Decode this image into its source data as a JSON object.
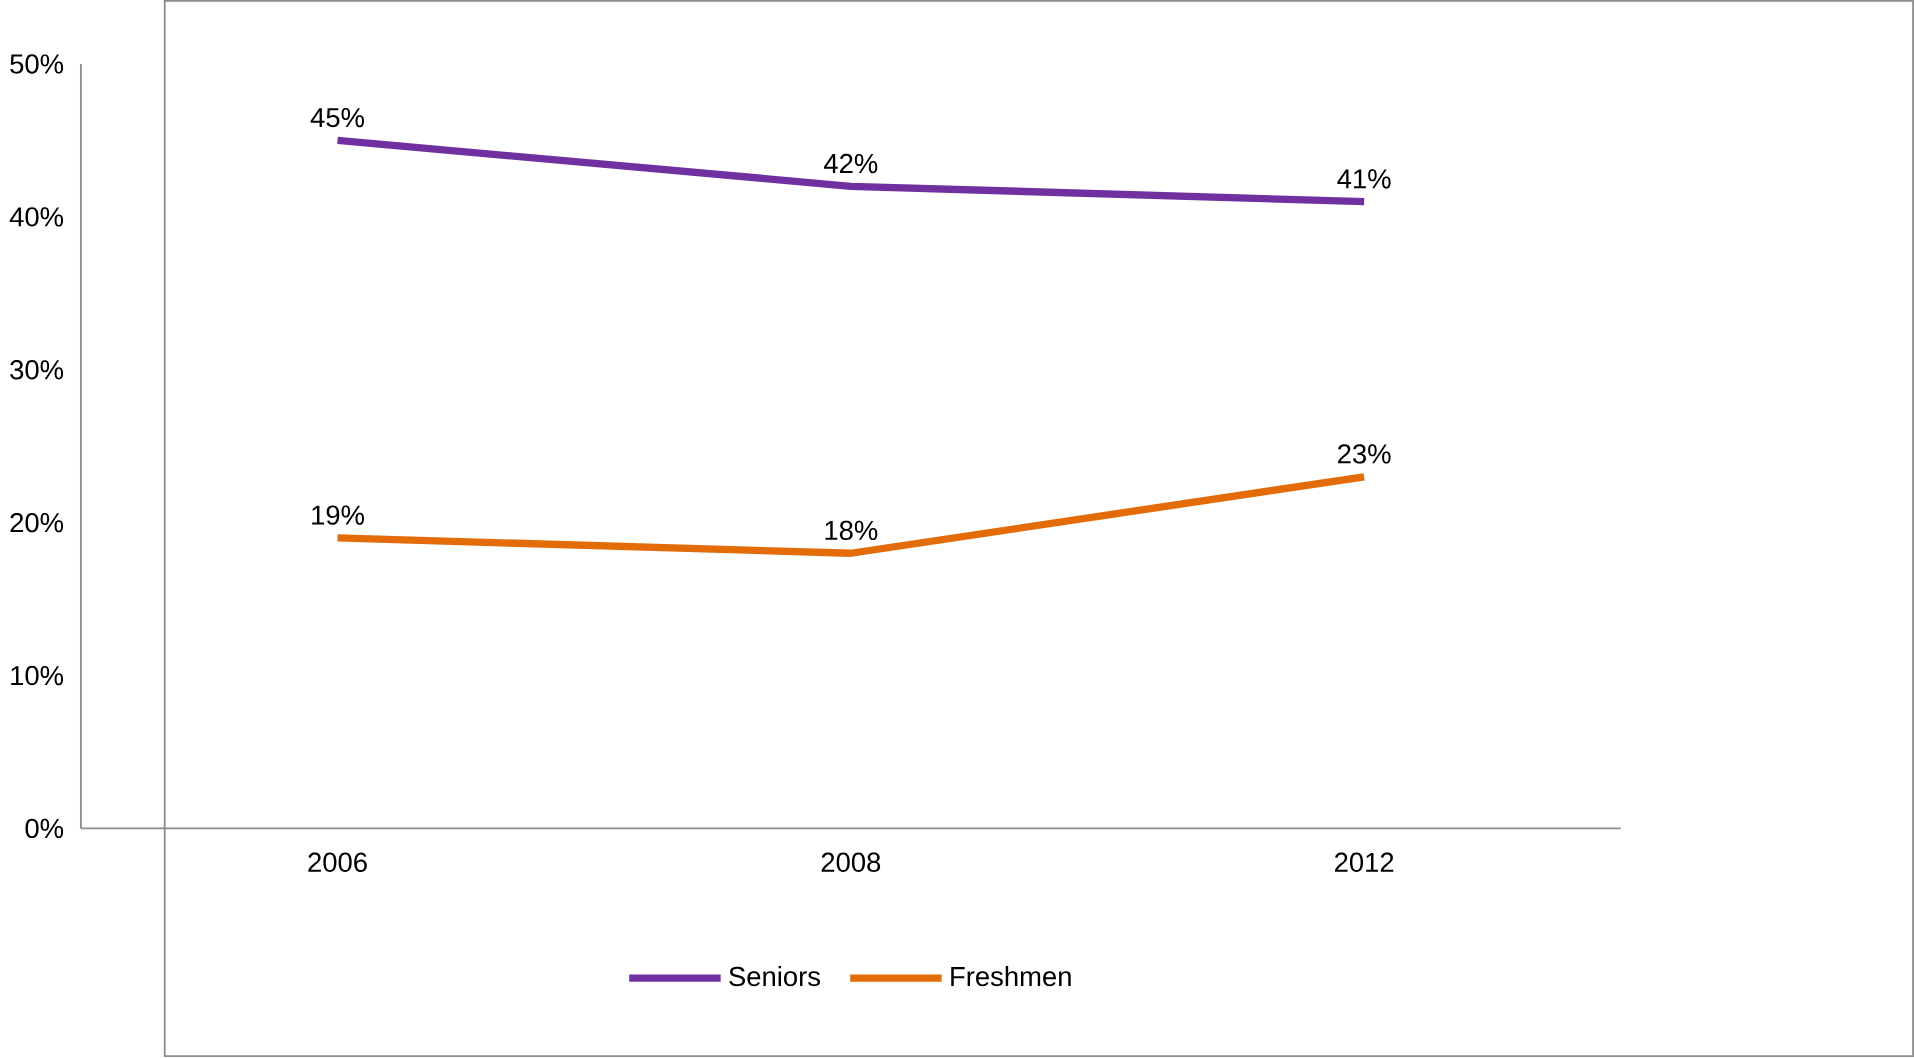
{
  "chart_data": {
    "type": "line",
    "categories": [
      "2006",
      "2008",
      "2012"
    ],
    "series": [
      {
        "name": "Seniors",
        "color": "#7030a0",
        "values": [
          45,
          42,
          41
        ],
        "value_labels": [
          "45%",
          "42%",
          "41%"
        ]
      },
      {
        "name": "Freshmen",
        "color": "#e36c09",
        "values": [
          19,
          18,
          23
        ],
        "value_labels": [
          "19%",
          "18%",
          "23%"
        ]
      }
    ],
    "ylim": [
      0,
      50
    ],
    "yticks": [
      {
        "value": 0,
        "label": "0%"
      },
      {
        "value": 10,
        "label": "10%"
      },
      {
        "value": 20,
        "label": "20%"
      },
      {
        "value": 30,
        "label": "30%"
      },
      {
        "value": 40,
        "label": "40%"
      },
      {
        "value": 50,
        "label": "50%"
      }
    ],
    "grid": false,
    "legend": "bottom"
  }
}
